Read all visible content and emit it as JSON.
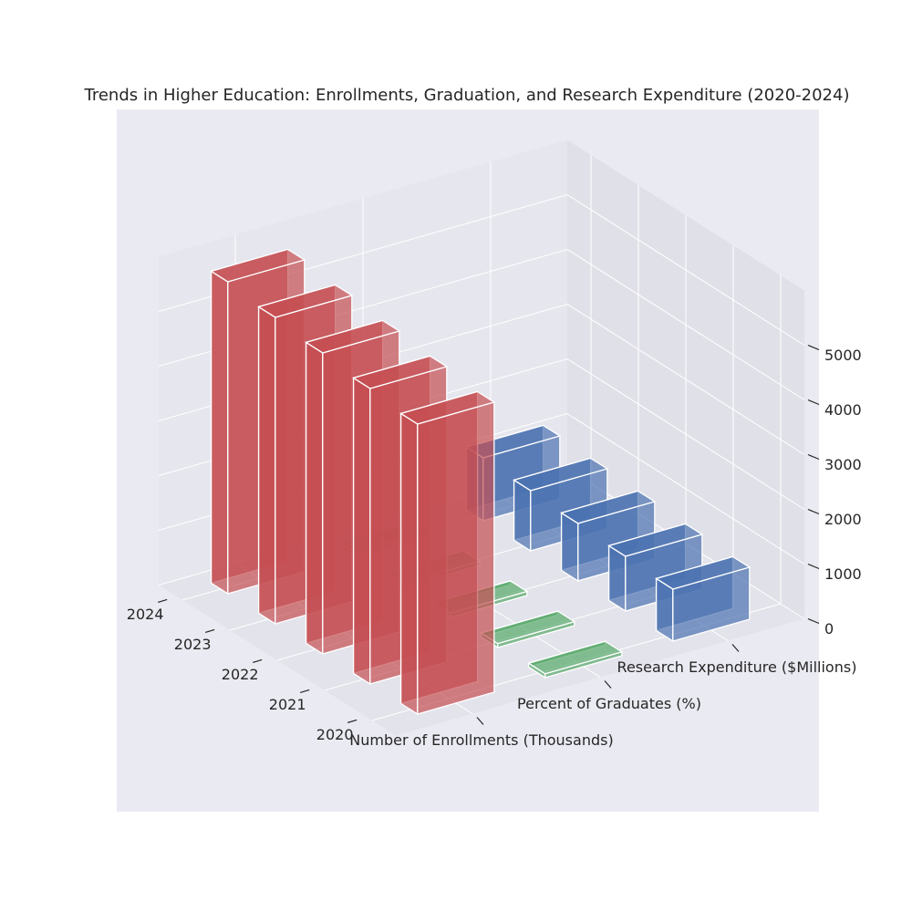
{
  "chart_data": {
    "type": "bar3d",
    "title": "Trends in Higher Education: Enrollments, Graduation, and Research Expenditure (2020-2024)",
    "categories": [
      "2020",
      "2021",
      "2022",
      "2023",
      "2024"
    ],
    "series": [
      {
        "name": "Number of Enrollments (Thousands)",
        "color": "#c44e52",
        "values": [
          5300,
          5400,
          5500,
          5600,
          5700
        ]
      },
      {
        "name": "Percent of Graduates (%)",
        "color": "#55a868",
        "values": [
          70,
          72,
          74,
          76,
          78
        ]
      },
      {
        "name": "Research Expenditure ($Millions)",
        "color": "#4c72b0",
        "values": [
          950,
          1000,
          1050,
          1100,
          1150
        ]
      }
    ],
    "zlim": [
      0,
      6000
    ],
    "zticks": [
      0,
      1000,
      2000,
      3000,
      4000,
      5000
    ],
    "grid": true
  }
}
